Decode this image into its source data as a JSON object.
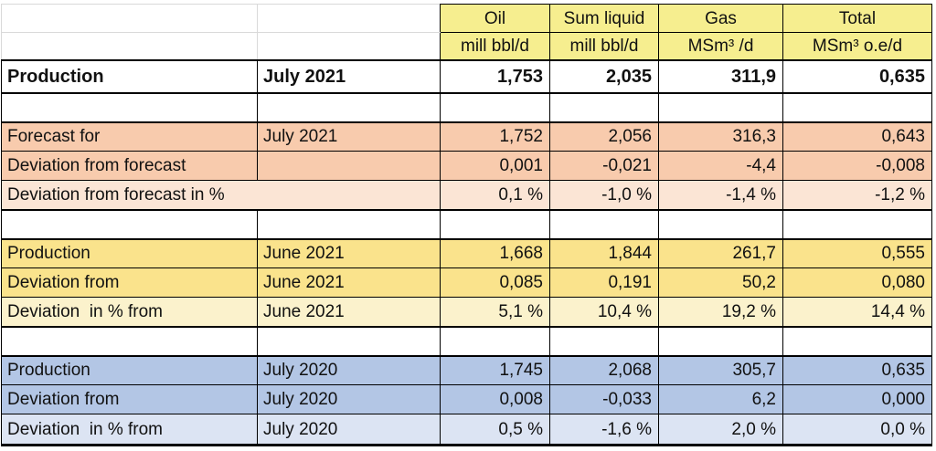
{
  "colors": {
    "header_yellow": "#f6ee8f",
    "orange": "#f8cbad",
    "orange_light": "#fbe5d5",
    "gold": "#fae38c",
    "gold_light": "#fbf2cc",
    "blue": "#b3c6e5",
    "blue_light": "#dce4f3",
    "grid_gray": "#d9d9d9"
  },
  "table": {
    "columns": [
      {
        "label": "Oil",
        "unit": "mill bbl/d"
      },
      {
        "label": "Sum liquid",
        "unit": "mill bbl/d"
      },
      {
        "label": "Gas",
        "unit": "MSm³ /d"
      },
      {
        "label": "Total",
        "unit": "MSm³ o.e/d"
      }
    ],
    "rows": [
      {
        "label": "Production",
        "period": "July 2021",
        "values": [
          "1,753",
          "2,035",
          "311,9",
          "0,635"
        ]
      },
      {
        "label": "",
        "period": "",
        "values": [
          "",
          "",
          "",
          ""
        ]
      },
      {
        "label": "Forecast for",
        "period": "July 2021",
        "values": [
          "1,752",
          "2,056",
          "316,3",
          "0,643"
        ]
      },
      {
        "label": "Deviation from forecast",
        "period": "",
        "values": [
          "0,001",
          "-0,021",
          "-4,4",
          "-0,008"
        ]
      },
      {
        "label": "Deviation from forecast in %",
        "period": "",
        "values": [
          "0,1 %",
          "-1,0 %",
          "-1,4 %",
          "-1,2 %"
        ]
      },
      {
        "label": "",
        "period": "",
        "values": [
          "",
          "",
          "",
          ""
        ]
      },
      {
        "label": "Production",
        "period": "June 2021",
        "values": [
          "1,668",
          "1,844",
          "261,7",
          "0,555"
        ]
      },
      {
        "label": "Deviation from",
        "period": "June 2021",
        "values": [
          "0,085",
          "0,191",
          "50,2",
          "0,080"
        ]
      },
      {
        "label": "Deviation  in % from",
        "period": "June 2021",
        "values": [
          "5,1 %",
          "10,4 %",
          "19,2 %",
          "14,4 %"
        ]
      },
      {
        "label": "",
        "period": "",
        "values": [
          "",
          "",
          "",
          ""
        ]
      },
      {
        "label": "Production",
        "period": "July 2020",
        "values": [
          "1,745",
          "2,068",
          "305,7",
          "0,635"
        ]
      },
      {
        "label": "Deviation from",
        "period": "July 2020",
        "values": [
          "0,008",
          "-0,033",
          "6,2",
          "0,000"
        ]
      },
      {
        "label": "Deviation  in % from",
        "period": "July 2020",
        "values": [
          "0,5 %",
          "-1,6 %",
          "2,0 %",
          "0,0 %"
        ]
      }
    ]
  }
}
